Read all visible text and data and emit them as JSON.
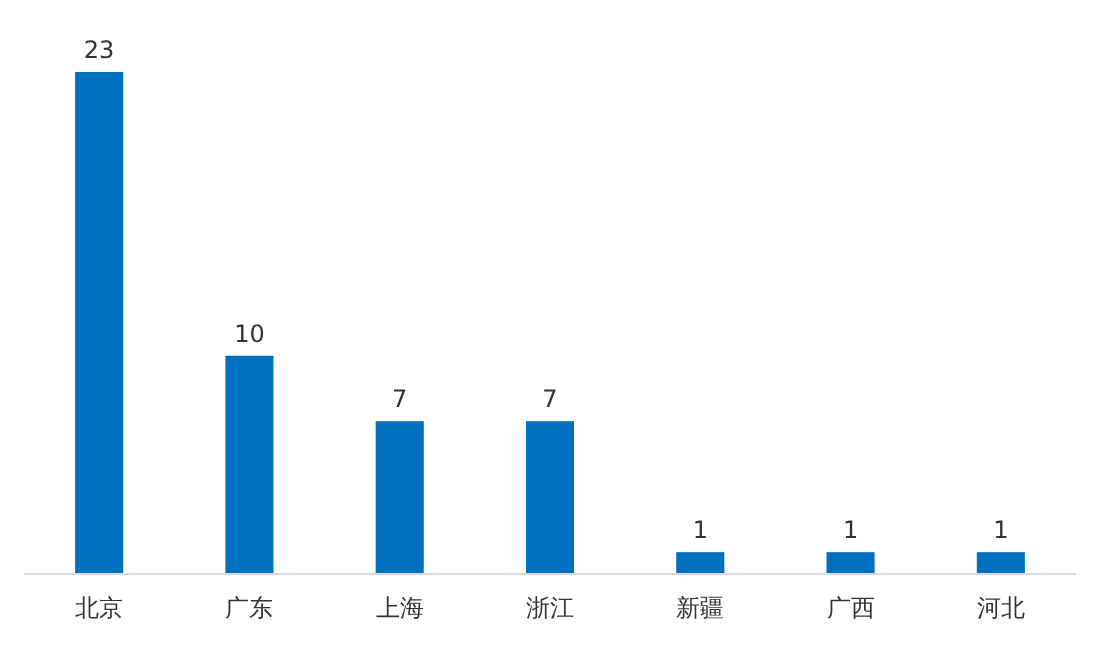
{
  "chart_data": {
    "type": "bar",
    "categories": [
      "北京",
      "广东",
      "上海",
      "浙江",
      "新疆",
      "广西",
      "河北"
    ],
    "values": [
      23,
      10,
      7,
      7,
      1,
      1,
      1
    ],
    "color": "#0070c0",
    "data_labels": true
  }
}
